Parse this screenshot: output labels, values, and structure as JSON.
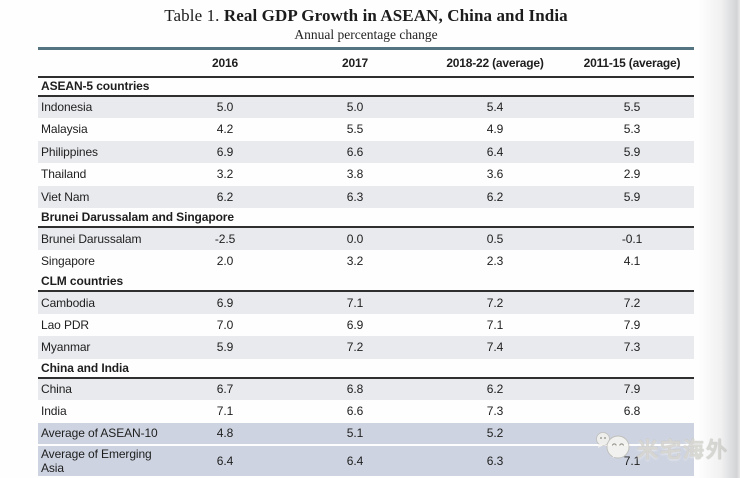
{
  "title_prefix": "Table 1.",
  "title_main": "Real GDP Growth in ASEAN, China and India",
  "subtitle": "Annual percentage change",
  "table": {
    "columns": [
      "2016",
      "2017",
      "2018-22 (average)",
      "2011-15 (average)"
    ],
    "sections": [
      {
        "header": "ASEAN-5 countries",
        "rows": [
          {
            "label": "Indonesia",
            "values": [
              "5.0",
              "5.0",
              "5.4",
              "5.5"
            ]
          },
          {
            "label": "Malaysia",
            "values": [
              "4.2",
              "5.5",
              "4.9",
              "5.3"
            ]
          },
          {
            "label": "Philippines",
            "values": [
              "6.9",
              "6.6",
              "6.4",
              "5.9"
            ]
          },
          {
            "label": "Thailand",
            "values": [
              "3.2",
              "3.8",
              "3.6",
              "2.9"
            ]
          },
          {
            "label": "Viet Nam",
            "values": [
              "6.2",
              "6.3",
              "6.2",
              "5.9"
            ]
          }
        ]
      },
      {
        "header": "Brunei Darussalam and Singapore",
        "rows": [
          {
            "label": "Brunei Darussalam",
            "values": [
              "-2.5",
              "0.0",
              "0.5",
              "-0.1"
            ]
          },
          {
            "label": "Singapore",
            "values": [
              "2.0",
              "3.2",
              "2.3",
              "4.1"
            ]
          }
        ]
      },
      {
        "header": "CLM countries",
        "rows": [
          {
            "label": "Cambodia",
            "values": [
              "6.9",
              "7.1",
              "7.2",
              "7.2"
            ]
          },
          {
            "label": "Lao PDR",
            "values": [
              "7.0",
              "6.9",
              "7.1",
              "7.9"
            ]
          },
          {
            "label": "Myanmar",
            "values": [
              "5.9",
              "7.2",
              "7.4",
              "7.3"
            ]
          }
        ]
      },
      {
        "header": "China and India",
        "rows": [
          {
            "label": "China",
            "values": [
              "6.7",
              "6.8",
              "6.2",
              "7.9"
            ]
          },
          {
            "label": "India",
            "values": [
              "7.1",
              "6.6",
              "7.3",
              "6.8"
            ]
          }
        ]
      }
    ],
    "summary_rows": [
      {
        "label": "Average of ASEAN-10",
        "values": [
          "4.8",
          "5.1",
          "5.2",
          ""
        ]
      },
      {
        "label": "Average of Emerging Asia",
        "values": [
          "6.4",
          "6.4",
          "6.3",
          "7.1"
        ]
      }
    ]
  },
  "watermark": {
    "text": "米宅海外",
    "icon": "wechat-chat-bubbles-icon"
  },
  "colors": {
    "accent_line": "#547482",
    "rule": "#2f2f2f",
    "row_shade": "#e9eaee",
    "summary_shade": "#cdd3e0"
  }
}
